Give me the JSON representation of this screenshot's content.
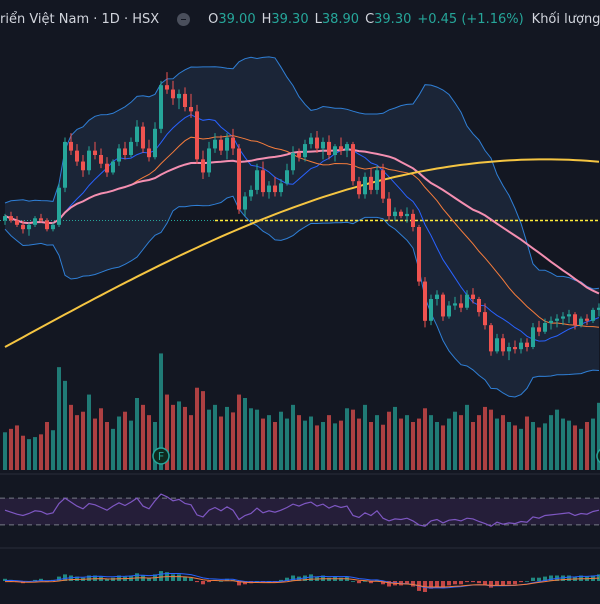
{
  "legend": {
    "symbol": "riển Việt Nam · 1D · HSX",
    "open_key": "O",
    "open": "39.00",
    "high_key": "H",
    "high": "39.30",
    "low_key": "L",
    "low": "38.90",
    "close_key": "C",
    "close": "39.30",
    "change": "+0.45 (+1.16%)",
    "volume_label": "Khối lượng"
  },
  "markers": [
    {
      "label": "F",
      "bar": 26
    },
    {
      "label": "F",
      "bar": 100
    }
  ],
  "colors": {
    "background": "#131722",
    "up": "#26a69a",
    "down": "#ef5350",
    "bb_fill": "#1f2b3f",
    "bb_line": "#2f7fd6",
    "ma_short": "#2962ff",
    "ma_mid": "#f57c3c",
    "ma_long": "#f48fb1",
    "ma_200": "#f5c542",
    "hline": "#ffeb3b",
    "rsi": "#7e57c2",
    "rsi_band": "#2a2140"
  },
  "chart_data": {
    "type": "candlestick",
    "price_axis_visible": false,
    "reference_line": 39.0,
    "candles": [
      [
        39.0,
        39.3,
        38.8,
        39.2
      ],
      [
        39.2,
        39.4,
        38.9,
        39.0
      ],
      [
        39.0,
        39.2,
        38.7,
        38.8
      ],
      [
        38.8,
        39.0,
        38.4,
        38.6
      ],
      [
        38.6,
        38.9,
        38.3,
        38.8
      ],
      [
        38.8,
        39.2,
        38.7,
        39.1
      ],
      [
        39.1,
        39.3,
        38.9,
        39.0
      ],
      [
        39.0,
        39.1,
        38.5,
        38.6
      ],
      [
        38.6,
        38.9,
        38.5,
        38.8
      ],
      [
        38.8,
        40.7,
        38.7,
        40.5
      ],
      [
        40.5,
        42.8,
        40.3,
        42.6
      ],
      [
        42.6,
        43.0,
        42.0,
        42.2
      ],
      [
        42.2,
        42.5,
        41.5,
        41.7
      ],
      [
        41.7,
        42.0,
        41.0,
        41.3
      ],
      [
        41.3,
        42.4,
        41.1,
        42.2
      ],
      [
        42.2,
        42.6,
        41.8,
        42.0
      ],
      [
        42.0,
        42.3,
        41.4,
        41.6
      ],
      [
        41.6,
        41.9,
        41.0,
        41.2
      ],
      [
        41.2,
        41.8,
        41.1,
        41.7
      ],
      [
        41.7,
        42.5,
        41.5,
        42.3
      ],
      [
        42.3,
        42.6,
        41.8,
        42.0
      ],
      [
        42.0,
        42.8,
        41.9,
        42.6
      ],
      [
        42.6,
        43.6,
        42.4,
        43.3
      ],
      [
        43.3,
        43.5,
        42.1,
        42.3
      ],
      [
        42.3,
        42.7,
        41.7,
        41.9
      ],
      [
        41.9,
        43.5,
        41.8,
        43.2
      ],
      [
        43.2,
        45.4,
        43.0,
        45.2
      ],
      [
        45.2,
        45.8,
        44.8,
        45.0
      ],
      [
        45.0,
        45.4,
        44.3,
        44.6
      ],
      [
        44.6,
        45.0,
        44.1,
        44.8
      ],
      [
        44.8,
        45.1,
        44.0,
        44.2
      ],
      [
        44.2,
        44.8,
        43.7,
        44.0
      ],
      [
        44.0,
        44.3,
        41.6,
        41.8
      ],
      [
        41.8,
        42.2,
        40.9,
        41.2
      ],
      [
        41.2,
        42.6,
        41.0,
        42.3
      ],
      [
        42.3,
        43.0,
        42.1,
        42.7
      ],
      [
        42.7,
        42.9,
        42.0,
        42.2
      ],
      [
        42.2,
        43.0,
        41.8,
        42.8
      ],
      [
        42.8,
        43.2,
        42.0,
        42.3
      ],
      [
        42.3,
        42.5,
        39.3,
        39.5
      ],
      [
        39.5,
        40.3,
        39.2,
        40.1
      ],
      [
        40.1,
        40.6,
        39.9,
        40.4
      ],
      [
        40.4,
        41.6,
        40.2,
        41.3
      ],
      [
        41.3,
        41.7,
        40.1,
        40.3
      ],
      [
        40.3,
        40.8,
        40.0,
        40.6
      ],
      [
        40.6,
        41.0,
        40.1,
        40.3
      ],
      [
        40.3,
        40.9,
        40.1,
        40.7
      ],
      [
        40.7,
        41.6,
        40.6,
        41.3
      ],
      [
        41.3,
        42.4,
        41.1,
        42.1
      ],
      [
        42.1,
        42.3,
        41.7,
        41.9
      ],
      [
        41.9,
        42.7,
        41.7,
        42.5
      ],
      [
        42.5,
        43.0,
        42.3,
        42.8
      ],
      [
        42.8,
        43.1,
        42.1,
        42.3
      ],
      [
        42.3,
        42.8,
        41.8,
        42.6
      ],
      [
        42.6,
        42.9,
        41.8,
        42.0
      ],
      [
        42.0,
        42.5,
        41.7,
        42.4
      ],
      [
        42.4,
        42.8,
        42.0,
        42.2
      ],
      [
        42.2,
        42.6,
        41.9,
        42.5
      ],
      [
        42.5,
        42.6,
        40.6,
        40.8
      ],
      [
        40.8,
        41.0,
        40.0,
        40.2
      ],
      [
        40.2,
        41.2,
        40.0,
        41.0
      ],
      [
        41.0,
        41.4,
        40.2,
        40.4
      ],
      [
        40.4,
        41.5,
        40.2,
        41.3
      ],
      [
        41.3,
        41.6,
        39.8,
        40.0
      ],
      [
        40.0,
        40.3,
        39.0,
        39.2
      ],
      [
        39.2,
        39.6,
        39.0,
        39.4
      ],
      [
        39.4,
        39.5,
        39.1,
        39.2
      ],
      [
        39.2,
        39.6,
        38.9,
        39.3
      ],
      [
        39.3,
        39.5,
        38.5,
        38.7
      ],
      [
        38.7,
        38.8,
        36.0,
        36.2
      ],
      [
        36.2,
        36.4,
        34.1,
        34.4
      ],
      [
        34.4,
        35.6,
        34.2,
        35.4
      ],
      [
        35.4,
        35.8,
        35.1,
        35.6
      ],
      [
        35.6,
        35.7,
        34.4,
        34.6
      ],
      [
        34.6,
        35.3,
        34.5,
        35.1
      ],
      [
        35.1,
        35.5,
        34.9,
        35.2
      ],
      [
        35.2,
        35.6,
        34.8,
        35.0
      ],
      [
        35.0,
        35.8,
        34.9,
        35.6
      ],
      [
        35.6,
        35.9,
        35.2,
        35.4
      ],
      [
        35.4,
        35.5,
        34.6,
        34.8
      ],
      [
        34.8,
        35.2,
        34.0,
        34.2
      ],
      [
        34.2,
        34.3,
        32.8,
        33.0
      ],
      [
        33.0,
        33.8,
        32.9,
        33.6
      ],
      [
        33.6,
        33.8,
        32.8,
        33.0
      ],
      [
        33.0,
        33.4,
        32.6,
        33.2
      ],
      [
        33.2,
        33.5,
        32.9,
        33.1
      ],
      [
        33.1,
        33.6,
        32.9,
        33.4
      ],
      [
        33.4,
        33.6,
        33.0,
        33.2
      ],
      [
        33.2,
        34.3,
        33.1,
        34.1
      ],
      [
        34.1,
        34.4,
        33.7,
        33.9
      ],
      [
        33.9,
        34.5,
        33.8,
        34.3
      ],
      [
        34.3,
        34.6,
        34.0,
        34.4
      ],
      [
        34.4,
        34.7,
        34.1,
        34.5
      ],
      [
        34.5,
        34.8,
        34.2,
        34.6
      ],
      [
        34.6,
        34.9,
        34.3,
        34.7
      ],
      [
        34.7,
        34.8,
        34.0,
        34.2
      ],
      [
        34.2,
        34.6,
        34.1,
        34.5
      ],
      [
        34.5,
        34.7,
        34.2,
        34.4
      ],
      [
        34.4,
        35.0,
        34.3,
        34.9
      ],
      [
        34.9,
        35.2,
        34.6,
        35.0
      ]
    ],
    "volume": [
      55,
      60,
      65,
      50,
      45,
      48,
      52,
      70,
      58,
      150,
      130,
      95,
      80,
      85,
      110,
      75,
      90,
      70,
      60,
      78,
      85,
      72,
      105,
      95,
      80,
      70,
      170,
      110,
      95,
      100,
      92,
      80,
      120,
      115,
      88,
      95,
      78,
      92,
      84,
      110,
      105,
      90,
      88,
      75,
      80,
      70,
      85,
      75,
      95,
      80,
      72,
      78,
      65,
      70,
      80,
      68,
      72,
      90,
      88,
      75,
      95,
      70,
      80,
      66,
      85,
      92,
      75,
      80,
      70,
      75,
      90,
      80,
      70,
      65,
      75,
      85,
      80,
      95,
      70,
      80,
      92,
      88,
      75,
      80,
      70,
      65,
      60,
      78,
      70,
      62,
      68,
      80,
      88,
      75,
      72,
      65,
      60,
      70,
      75,
      98
    ],
    "rsi": [
      52,
      49,
      46,
      44,
      47,
      51,
      50,
      46,
      48,
      62,
      70,
      64,
      58,
      54,
      62,
      60,
      56,
      52,
      58,
      63,
      59,
      64,
      70,
      58,
      54,
      66,
      76,
      72,
      66,
      68,
      62,
      60,
      45,
      42,
      52,
      56,
      51,
      57,
      52,
      38,
      44,
      47,
      55,
      48,
      51,
      49,
      52,
      56,
      61,
      58,
      62,
      64,
      58,
      61,
      55,
      59,
      56,
      58,
      44,
      41,
      48,
      44,
      51,
      40,
      36,
      39,
      38,
      40,
      36,
      30,
      28,
      36,
      38,
      33,
      37,
      38,
      36,
      40,
      39,
      35,
      32,
      28,
      34,
      31,
      33,
      32,
      35,
      34,
      42,
      40,
      44,
      45,
      46,
      47,
      48,
      44,
      47,
      46,
      50,
      52
    ],
    "macd_hist": [
      0.02,
      0.01,
      -0.01,
      -0.02,
      -0.01,
      0.01,
      0.02,
      0.0,
      0.01,
      0.04,
      0.06,
      0.05,
      0.04,
      0.03,
      0.05,
      0.05,
      0.04,
      0.02,
      0.03,
      0.05,
      0.04,
      0.05,
      0.07,
      0.05,
      0.03,
      0.06,
      0.09,
      0.08,
      0.06,
      0.06,
      0.04,
      0.03,
      -0.01,
      -0.03,
      -0.01,
      0.01,
      0.0,
      0.02,
      0.01,
      -0.04,
      -0.03,
      -0.02,
      0.0,
      -0.01,
      0.0,
      -0.01,
      0.01,
      0.03,
      0.05,
      0.04,
      0.05,
      0.06,
      0.04,
      0.05,
      0.03,
      0.04,
      0.03,
      0.04,
      0.0,
      -0.02,
      0.0,
      -0.02,
      0.01,
      -0.03,
      -0.05,
      -0.04,
      -0.04,
      -0.03,
      -0.05,
      -0.09,
      -0.1,
      -0.07,
      -0.05,
      -0.06,
      -0.04,
      -0.03,
      -0.03,
      -0.01,
      -0.01,
      -0.02,
      -0.04,
      -0.06,
      -0.04,
      -0.04,
      -0.03,
      -0.03,
      -0.01,
      0.0,
      0.03,
      0.03,
      0.04,
      0.05,
      0.05,
      0.05,
      0.05,
      0.04,
      0.05,
      0.04,
      0.05,
      0.06
    ]
  }
}
